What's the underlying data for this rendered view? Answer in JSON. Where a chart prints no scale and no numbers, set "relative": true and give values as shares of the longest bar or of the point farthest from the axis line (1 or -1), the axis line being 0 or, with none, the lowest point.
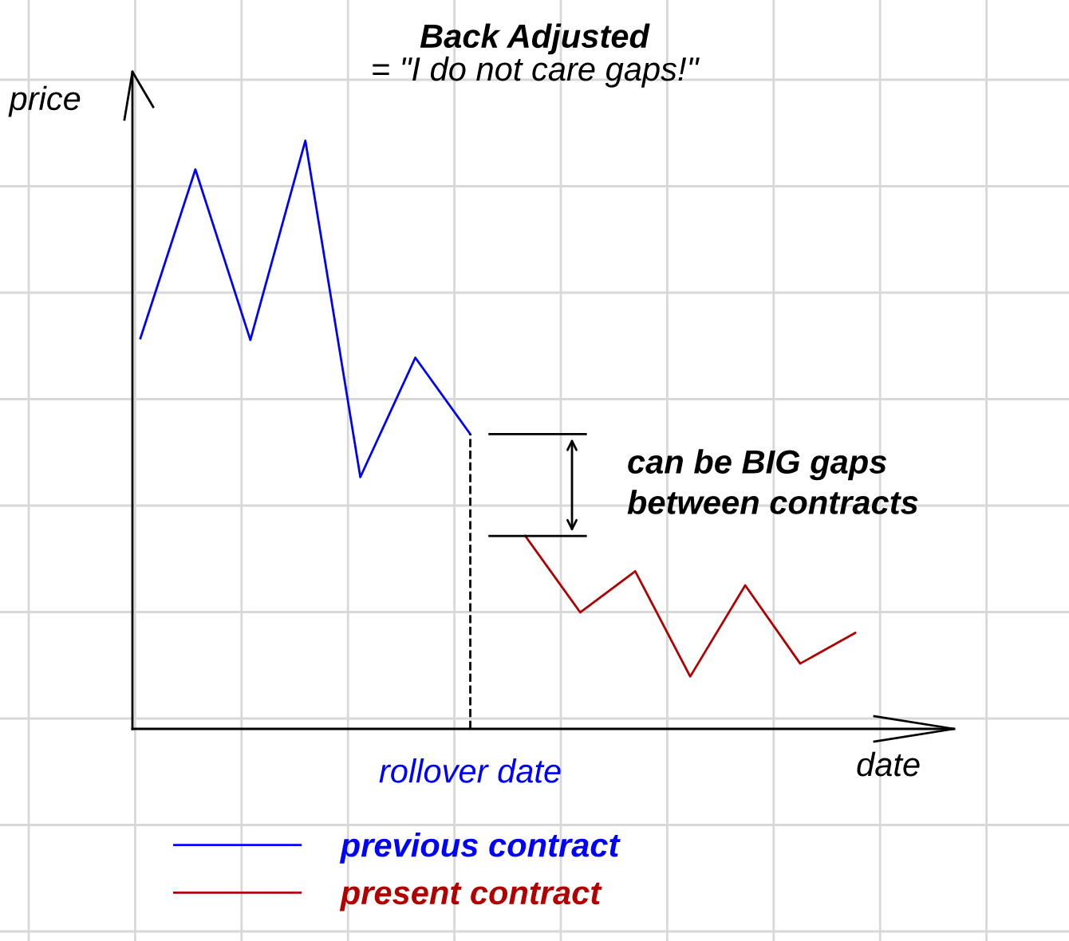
{
  "chart_data": {
    "type": "line",
    "title": "Back Adjusted",
    "subtitle": "= \"I do not care gaps!\"",
    "xlabel": "date",
    "ylabel": "price",
    "relative": true,
    "grid": true,
    "legend": "bottom left",
    "marker": "none",
    "line_style": "solid",
    "categories": [
      null,
      null,
      null,
      null,
      null,
      null,
      null,
      null,
      null,
      null,
      null,
      null,
      null,
      null
    ],
    "series": [
      {
        "name": "previous contract",
        "color": "#0000ff",
        "values": [
          0.664,
          0.951,
          0.661,
          1,
          0.428,
          0.631,
          0.501,
          null,
          null,
          null,
          null,
          null,
          null,
          null
        ]
      },
      {
        "name": "present contract",
        "color": "#b00000",
        "values": [
          null,
          null,
          null,
          null,
          null,
          null,
          null,
          0.328,
          0.198,
          0.268,
          0.089,
          0.244,
          0.111,
          0.163
        ]
      }
    ],
    "annotations": [
      "rollover date",
      "can be BIG gaps\nbetween contracts"
    ]
  }
}
